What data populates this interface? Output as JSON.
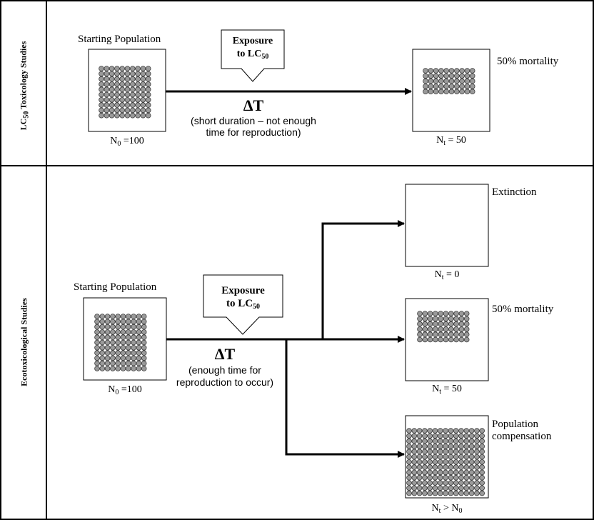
{
  "top_panel": {
    "side_label_pre": "LC",
    "side_label_sub": "50",
    "side_label_post": " Toxicology Studies",
    "start_label": "Starting Population",
    "start_count_pre": "N",
    "start_count_sub": "0",
    "start_count_post": " =100",
    "exposure_line1": "Exposure",
    "exposure_line2_pre": "to LC",
    "exposure_line2_sub": "50",
    "delta": "ΔT",
    "duration_line1": "(short duration – not enough",
    "duration_line2": "time for reproduction)",
    "outcome_label": "50%  mortality",
    "outcome_count_pre": "N",
    "outcome_count_sub": "t",
    "outcome_count_post": " = 50"
  },
  "bottom_panel": {
    "side_label": "Ecotoxicological Studies",
    "start_label": "Starting Population",
    "start_count_pre": "N",
    "start_count_sub": "0",
    "start_count_post": " =100",
    "exposure_line1": "Exposure",
    "exposure_line2_pre": "to LC",
    "exposure_line2_sub": "50",
    "delta": "ΔT",
    "duration_line1": "(enough time for",
    "duration_line2": "reproduction to occur)",
    "outcomes": [
      {
        "label": "Extinction",
        "count_pre": "N",
        "count_sub": "t",
        "count_post": " = 0"
      },
      {
        "label": "50%  mortality",
        "count_pre": "N",
        "count_sub": "t",
        "count_post": " = 50"
      },
      {
        "label_line1": "Population",
        "label_line2": "compensation",
        "count_pre": "N",
        "count_sub": "t",
        "count_post": " > N",
        "count_sub2": "0"
      }
    ]
  },
  "colors": {
    "circle_fill": "#9a9a9a",
    "circle_stroke": "#3a3a3a",
    "line": "#000000"
  }
}
